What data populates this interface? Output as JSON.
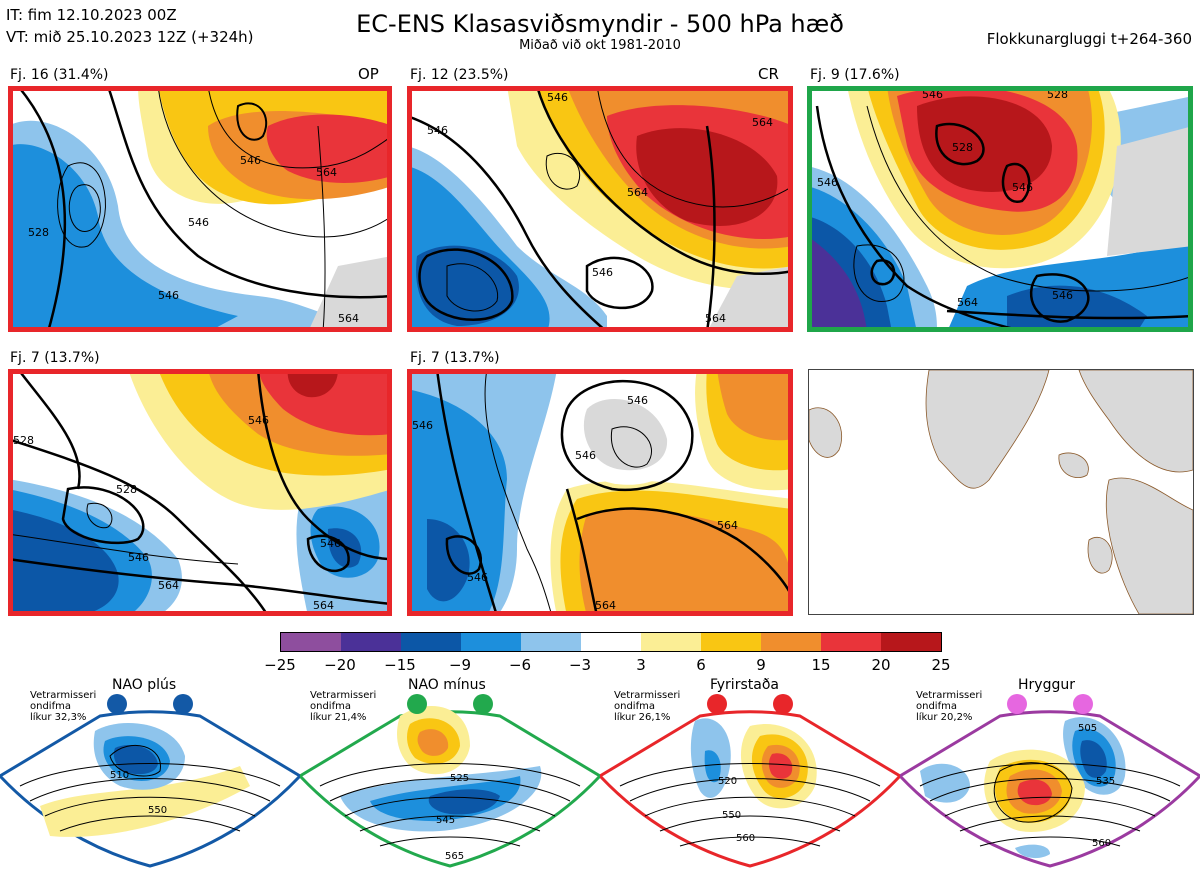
{
  "header": {
    "it_line": "IT: fim 12.10.2023 00Z",
    "vt_line": "VT: mið 25.10.2023 12Z  (+324h)",
    "title": "EC-ENS Klasasviðsmyndir - 500 hPa hæð",
    "subtitle": "Miðað við okt 1981-2010",
    "window": "Flokkunargluggi t+264-360"
  },
  "panels": [
    {
      "label": "Fj. 16 (31.4%)",
      "tag": "OP",
      "frame_color": "#e8262a",
      "contours": [
        "528",
        "546",
        "564",
        "546",
        "546",
        "564"
      ]
    },
    {
      "label": "Fj. 12 (23.5%)",
      "tag": "CR",
      "frame_color": "#e8262a",
      "contours": [
        "546",
        "546",
        "564",
        "564",
        "546",
        "564"
      ]
    },
    {
      "label": "Fj. 9 (17.6%)",
      "tag": "",
      "frame_color": "#1fa64a",
      "contours": [
        "546",
        "528",
        "546",
        "528",
        "546",
        "546",
        "564"
      ]
    },
    {
      "label": "Fj. 7 (13.7%)",
      "tag": "",
      "frame_color": "#e8262a",
      "contours": [
        "528",
        "546",
        "528",
        "546",
        "564",
        "546",
        "564"
      ]
    },
    {
      "label": "Fj. 7 (13.7%)",
      "tag": "",
      "frame_color": "#e8262a",
      "contours": [
        "546",
        "546",
        "546",
        "564",
        "546",
        "564"
      ]
    }
  ],
  "colorbar": {
    "colors": [
      "#8e4e9e",
      "#4b3198",
      "#0c57a7",
      "#1d8fdc",
      "#8ec4ec",
      "#ffffff",
      "#fbee95",
      "#f9c613",
      "#f08e2d",
      "#e9343a",
      "#b7171b"
    ],
    "ticks": [
      "−25",
      "−20",
      "−15",
      "−9",
      "−6",
      "−3",
      "3",
      "6",
      "9",
      "15",
      "20",
      "25"
    ]
  },
  "regimes": [
    {
      "name": "NAO plús",
      "stat_lines": [
        "Vetrarmisseri",
        "ondifma",
        "líkur 32,3%"
      ],
      "color": "#1359a6",
      "labels": [
        "510",
        "550"
      ]
    },
    {
      "name": "NAO mínus",
      "stat_lines": [
        "Vetrarmisseri",
        "ondifma",
        "líkur 21,4%"
      ],
      "color": "#22a94d",
      "labels": [
        "525",
        "545",
        "565"
      ]
    },
    {
      "name": "Fyrirstaða",
      "stat_lines": [
        "Vetrarmisseri",
        "ondifma",
        "líkur 26,1%"
      ],
      "color": "#e8262a",
      "labels": [
        "520",
        "550",
        "560"
      ]
    },
    {
      "name": "Hryggur",
      "stat_lines": [
        "Vetrarmisseri",
        "ondifma",
        "líkur 20,2%"
      ],
      "color": "#9b3aa0",
      "labels": [
        "505",
        "535",
        "560"
      ]
    }
  ]
}
